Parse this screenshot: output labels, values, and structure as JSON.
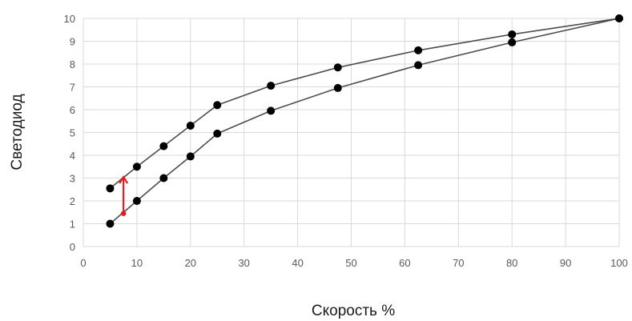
{
  "chart_data": {
    "type": "line",
    "title": "",
    "xlabel": "Скорость %",
    "ylabel": "Светодиод",
    "xlim": [
      0,
      100
    ],
    "ylim": [
      0,
      10
    ],
    "x_ticks": [
      0,
      10,
      20,
      30,
      40,
      50,
      60,
      70,
      80,
      90,
      100
    ],
    "y_ticks": [
      0,
      1,
      2,
      3,
      4,
      5,
      6,
      7,
      8,
      9,
      10
    ],
    "grid": true,
    "legend": "none",
    "series": [
      {
        "points": [
          [
            5,
            2.55
          ],
          [
            10,
            3.5
          ],
          [
            15,
            4.4
          ],
          [
            20,
            5.3
          ],
          [
            25,
            6.2
          ],
          [
            35,
            7.05
          ],
          [
            47.5,
            7.85
          ],
          [
            62.5,
            8.6
          ],
          [
            80,
            9.3
          ],
          [
            100,
            10
          ]
        ]
      },
      {
        "points": [
          [
            5,
            1
          ],
          [
            10,
            2
          ],
          [
            15,
            3
          ],
          [
            20,
            3.95
          ],
          [
            25,
            4.95
          ],
          [
            35,
            5.95
          ],
          [
            47.5,
            6.95
          ],
          [
            62.5,
            7.95
          ],
          [
            80,
            8.95
          ],
          [
            100,
            10
          ]
        ]
      }
    ],
    "annotations": [
      {
        "type": "arrow",
        "from": [
          7.5,
          1.45
        ],
        "to": [
          7.5,
          3.05
        ],
        "color": "#e8191e"
      }
    ],
    "colors": {
      "line": "#4d4d4d",
      "marker": "#000000",
      "grid": "#d9d9d9",
      "annotation": "#e8191e"
    }
  }
}
